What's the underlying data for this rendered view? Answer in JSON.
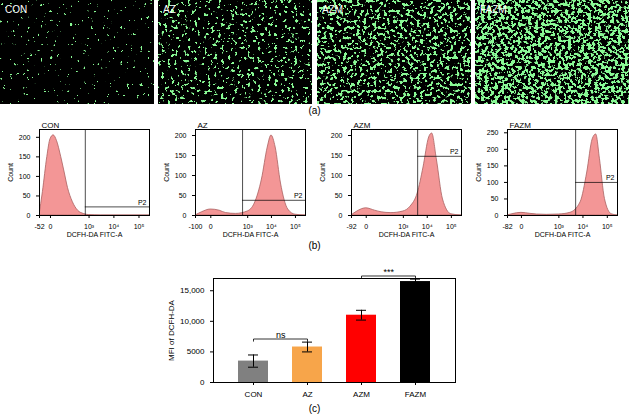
{
  "figure": {
    "panel_labels": {
      "a": "(a)",
      "b": "(b)",
      "c": "(c)"
    },
    "images": [
      "CON",
      "AZ",
      "AZM",
      "FAZM"
    ]
  },
  "chart_data": [
    {
      "type": "area",
      "title": "CON",
      "xlabel": "DCFH-DA FITC-A",
      "ylabel": "Count",
      "log": "x",
      "color": "#f28b8b",
      "x": [
        -52,
        -30,
        -10,
        0,
        10,
        25,
        50,
        80,
        120,
        200,
        350,
        600,
        1000,
        3000,
        262144
      ],
      "values": [
        0,
        60,
        150,
        195,
        205,
        190,
        150,
        110,
        70,
        35,
        12,
        4,
        1,
        0,
        0
      ],
      "xlim": [
        -52,
        262144
      ],
      "xticks": [
        -52,
        0,
        {
          "value": 1000,
          "label": "10³"
        },
        {
          "value": 10000,
          "label": "10⁴"
        },
        {
          "value": 100000,
          "label": "10⁵"
        }
      ],
      "ylim": [
        0,
        220
      ],
      "yticks": [
        0,
        50,
        100,
        150,
        200
      ],
      "gate": {
        "label": "P2",
        "x": 700,
        "y": 22
      }
    },
    {
      "type": "area",
      "title": "AZ",
      "xlabel": "DCFH-DA FITC-A",
      "ylabel": "Count",
      "log": "x",
      "color": "#f28b8b",
      "x": [
        -100,
        -40,
        0,
        40,
        100,
        300,
        1000,
        2000,
        4000,
        7000,
        10000,
        15000,
        25000,
        50000,
        100000,
        262144
      ],
      "values": [
        0,
        8,
        15,
        12,
        6,
        4,
        10,
        30,
        90,
        170,
        200,
        170,
        80,
        15,
        2,
        0
      ],
      "xlim": [
        -100,
        262144
      ],
      "xticks": [
        -100,
        0,
        {
          "value": 1000,
          "label": "10³"
        },
        {
          "value": 10000,
          "label": "10⁴"
        },
        {
          "value": 100000,
          "label": "10⁵"
        }
      ],
      "ylim": [
        0,
        215
      ],
      "yticks": [
        0,
        50,
        100,
        150,
        200
      ],
      "gate": {
        "label": "P2",
        "x": 600,
        "y": 38
      }
    },
    {
      "type": "area",
      "title": "AZM",
      "xlabel": "DCFH-DA FITC-A",
      "ylabel": "Count",
      "log": "x",
      "color": "#f28b8b",
      "x": [
        -92,
        -40,
        0,
        40,
        100,
        300,
        1000,
        2000,
        4000,
        7000,
        12000,
        16000,
        25000,
        45000,
        100000,
        262144
      ],
      "values": [
        0,
        10,
        18,
        12,
        8,
        6,
        10,
        22,
        55,
        120,
        195,
        205,
        140,
        40,
        3,
        0
      ],
      "xlim": [
        -92,
        262144
      ],
      "xticks": [
        -92,
        0,
        {
          "value": 1000,
          "label": "10³"
        },
        {
          "value": 10000,
          "label": "10⁴"
        },
        {
          "value": 100000,
          "label": "10⁵"
        }
      ],
      "ylim": [
        0,
        215
      ],
      "yticks": [
        0,
        50,
        100,
        150,
        200
      ],
      "gate": {
        "label": "P2",
        "x": 4000,
        "y": 148
      }
    },
    {
      "type": "area",
      "title": "FAZM",
      "xlabel": "DCFH-DA FITC-A",
      "ylabel": "Count",
      "log": "x",
      "color": "#f28b8b",
      "x": [
        -82,
        -40,
        0,
        40,
        100,
        300,
        1000,
        3000,
        8000,
        15000,
        25000,
        35000,
        50000,
        80000,
        150000,
        262144
      ],
      "values": [
        0,
        4,
        8,
        5,
        3,
        2,
        3,
        8,
        40,
        130,
        230,
        245,
        170,
        50,
        4,
        0
      ],
      "xlim": [
        -82,
        262144
      ],
      "xticks": [
        -82,
        0,
        {
          "value": 1000,
          "label": "10³"
        },
        {
          "value": 10000,
          "label": "10⁴"
        },
        {
          "value": 100000,
          "label": "10⁵"
        }
      ],
      "ylim": [
        0,
        260
      ],
      "yticks": [
        0,
        50,
        100,
        150,
        200,
        250
      ],
      "gate": {
        "label": "P2",
        "x": 5000,
        "y": 100
      }
    },
    {
      "type": "bar",
      "ylabel": "MFI of DCFH-DA",
      "categories": [
        "CON",
        "AZ",
        "AZM",
        "FAZM"
      ],
      "values": [
        3500,
        5800,
        11000,
        16500
      ],
      "errors": [
        1000,
        800,
        800,
        400
      ],
      "colors": [
        "#808080",
        "#f7a54a",
        "#ff0000",
        "#000000"
      ],
      "ylim": [
        0,
        17000
      ],
      "yticks": [
        0,
        5000,
        {
          "value": 10000,
          "label": "10,000"
        },
        {
          "value": 15000,
          "label": "15,000"
        }
      ],
      "significance": [
        {
          "from": "CON",
          "to": "AZ",
          "label": "ns"
        },
        {
          "from": "AZM",
          "to": "FAZM",
          "label": "***"
        }
      ]
    }
  ]
}
